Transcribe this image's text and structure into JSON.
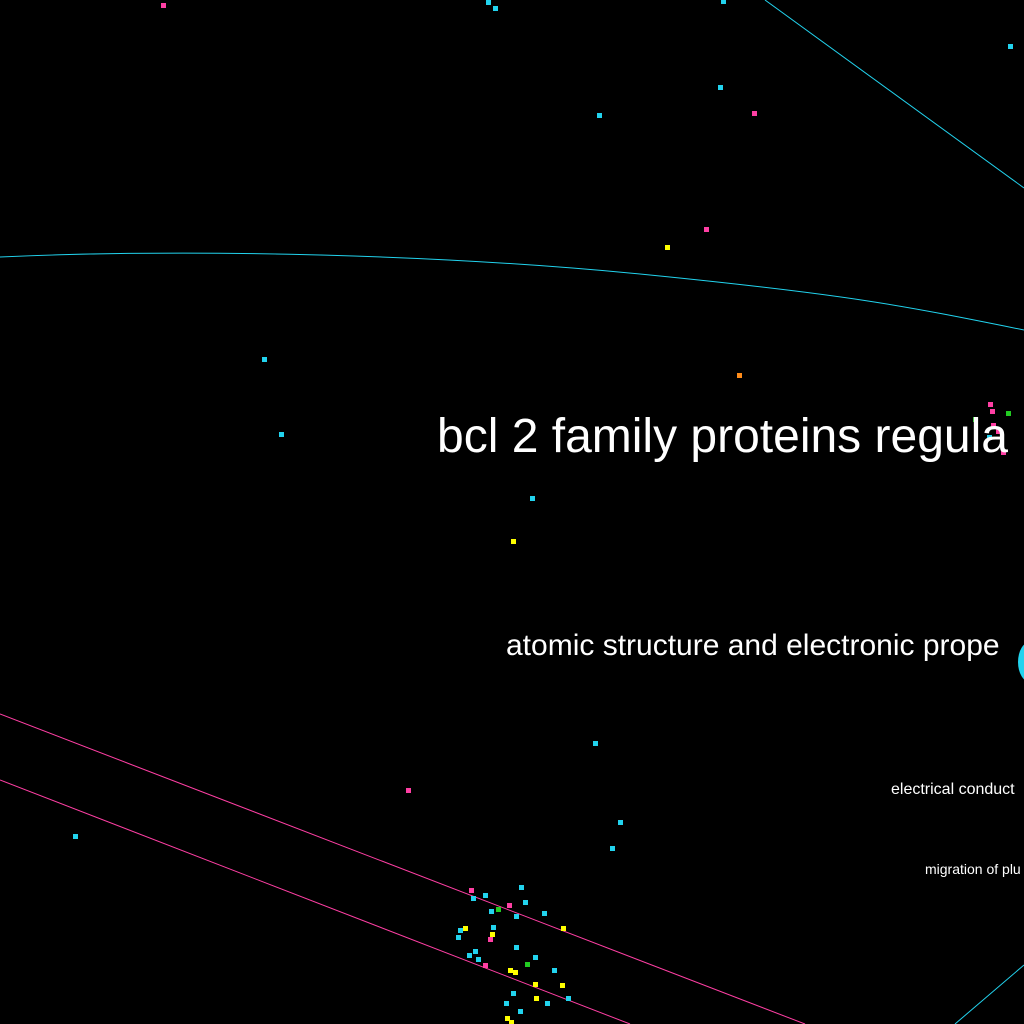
{
  "colors": {
    "background": "#000000",
    "label": "#ffffff",
    "cyan": "#22d3ee",
    "magenta": "#ff3fa4",
    "yellow": "#ffff00",
    "green": "#22cc22",
    "orange": "#ff8c1a"
  },
  "labels": {
    "topic_1": "bcl 2 family proteins regula",
    "topic_2": "atomic structure and electronic prope",
    "topic_3": "electrical conduct",
    "topic_4": "migration of plu"
  }
}
